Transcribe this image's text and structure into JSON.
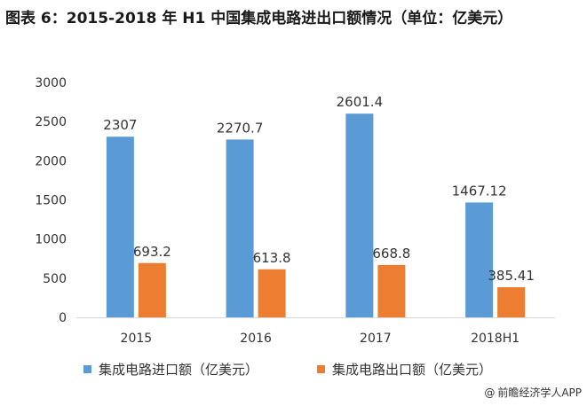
{
  "title": "图表 6：2015-2018 年 H1 中国集成电路进出口额情况（单位：亿美元）",
  "source": "前瞻经济学人APP",
  "source_icon": "at-sign-icon",
  "colors": {
    "import": "#5b9bd5",
    "export": "#ed7d31",
    "axis": "#d9d9d9",
    "text": "#333333"
  },
  "chart_data": {
    "type": "bar",
    "title": "图表 6：2015-2018 年 H1 中国集成电路进出口额情况（单位：亿美元）",
    "categories": [
      "2015",
      "2016",
      "2017",
      "2018H1"
    ],
    "series": [
      {
        "name": "集成电路进口额（亿美元）",
        "values": [
          2307,
          2270.7,
          2601.4,
          1467.12
        ],
        "labels": [
          "2307",
          "2270.7",
          "2601.4",
          "1467.12"
        ]
      },
      {
        "name": "集成电路出口额（亿美元）",
        "values": [
          693.2,
          613.8,
          668.8,
          385.41
        ],
        "labels": [
          "693.2",
          "613.8",
          "668.8",
          "385.41"
        ]
      }
    ],
    "ylim": [
      0,
      3000
    ],
    "yticks": [
      0,
      500,
      1000,
      1500,
      2000,
      2500,
      3000
    ],
    "ytick_labels": [
      "0",
      "500",
      "1000",
      "1500",
      "2000",
      "2500",
      "3000"
    ],
    "grid": false,
    "legend": "bottom"
  }
}
